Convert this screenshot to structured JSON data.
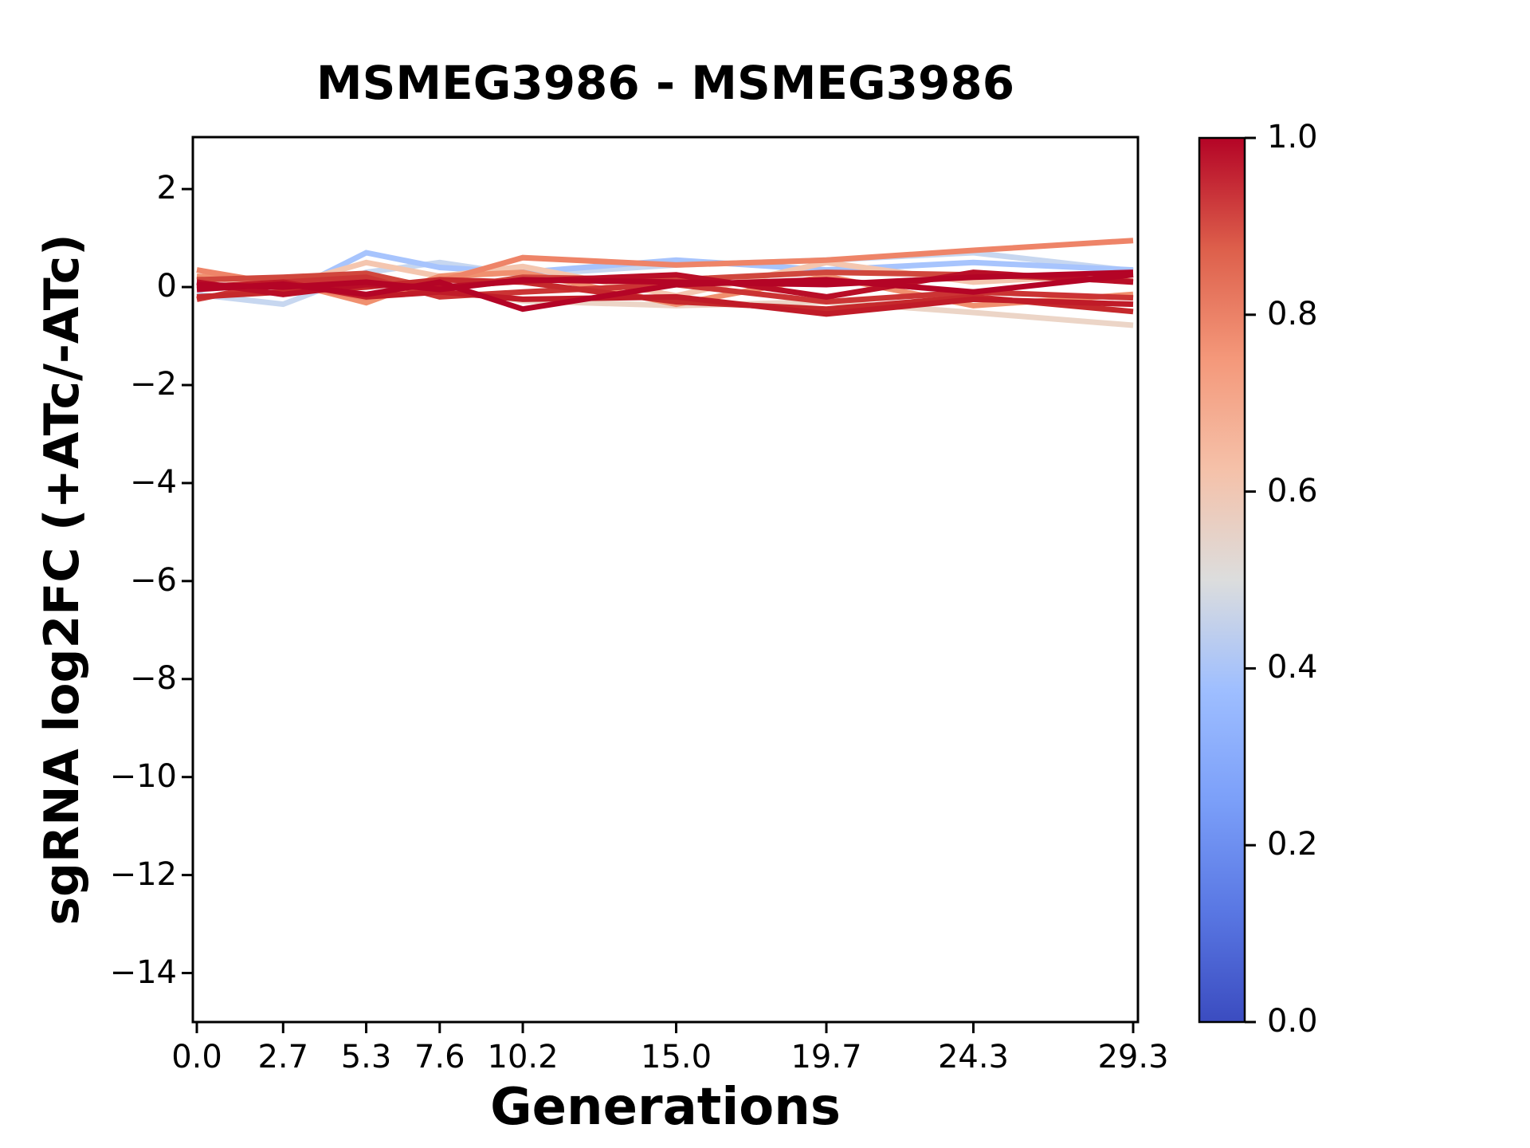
{
  "title": "MSMEG3986 - MSMEG3986",
  "chart_data": {
    "type": "line",
    "title": "MSMEG3986 - MSMEG3986",
    "xlabel": "Generations",
    "ylabel": "sgRNA log2FC (+ATc/-ATc)",
    "x": [
      0.0,
      2.7,
      5.3,
      7.6,
      10.2,
      15.0,
      19.7,
      24.3,
      29.3
    ],
    "xticklabels": [
      "0.0",
      "2.7",
      "5.3",
      "7.6",
      "10.2",
      "15.0",
      "19.7",
      "24.3",
      "29.3"
    ],
    "yticks": [
      2,
      0,
      -2,
      -4,
      -6,
      -8,
      -10,
      -12,
      -14
    ],
    "yticklabels": [
      "2",
      "0",
      "−2",
      "−4",
      "−6",
      "−8",
      "−10",
      "−12",
      "−14"
    ],
    "xlim": [
      -0.125,
      29.45
    ],
    "ylim": [
      -15.0,
      3.06
    ],
    "grid": false,
    "legend": "none",
    "line_width": 7,
    "series": [
      {
        "id": "sgRNA-01",
        "colormap_value": 0.47,
        "color": "#c7d7f0",
        "values": [
          -0.15,
          -0.35,
          0.3,
          0.5,
          0.25,
          0.45,
          0.55,
          0.7,
          0.33
        ]
      },
      {
        "id": "sgRNA-02",
        "colormap_value": 0.42,
        "color": "#a7c4fd",
        "values": [
          0.1,
          -0.15,
          0.7,
          0.4,
          0.3,
          0.55,
          0.35,
          0.5,
          0.35
        ]
      },
      {
        "id": "sgRNA-03",
        "colormap_value": 0.55,
        "color": "#ecd5c7",
        "values": [
          0.08,
          -0.05,
          0.15,
          -0.02,
          -0.28,
          -0.38,
          -0.3,
          -0.52,
          -0.78
        ]
      },
      {
        "id": "sgRNA-04",
        "colormap_value": 0.6,
        "color": "#f4c6af",
        "values": [
          0.22,
          0.02,
          0.5,
          0.22,
          0.42,
          -0.18,
          0.5,
          0.1,
          0.28
        ]
      },
      {
        "id": "sgRNA-05",
        "colormap_value": 0.78,
        "color": "#f0906f",
        "values": [
          0.22,
          0.12,
          -0.32,
          0.22,
          0.3,
          -0.35,
          0.22,
          -0.38,
          -0.15
        ]
      },
      {
        "id": "sgRNA-06",
        "colormap_value": 0.8,
        "color": "#ee8468",
        "values": [
          0.35,
          0.05,
          -0.22,
          0.12,
          0.6,
          0.45,
          0.55,
          0.75,
          0.95
        ]
      },
      {
        "id": "sgRNA-07",
        "colormap_value": 0.9,
        "color": "#d0473d",
        "values": [
          0.15,
          0.2,
          0.28,
          -0.05,
          0.2,
          0.15,
          0.3,
          0.25,
          0.12
        ]
      },
      {
        "id": "sgRNA-08",
        "colormap_value": 0.93,
        "color": "#cb3434",
        "values": [
          -0.25,
          0.1,
          0.2,
          -0.2,
          -0.1,
          0.05,
          -0.3,
          -0.1,
          -0.22
        ]
      },
      {
        "id": "sgRNA-09",
        "colormap_value": 0.95,
        "color": "#c5292c",
        "values": [
          -0.2,
          -0.1,
          0.0,
          0.15,
          0.1,
          -0.3,
          -0.45,
          -0.2,
          -0.5
        ]
      },
      {
        "id": "sgRNA-10",
        "colormap_value": 0.96,
        "color": "#c01b28",
        "values": [
          0.0,
          0.1,
          -0.2,
          -0.1,
          -0.25,
          -0.2,
          -0.55,
          -0.25,
          -0.35
        ]
      },
      {
        "id": "sgRNA-11",
        "colormap_value": 0.98,
        "color": "#b90e27",
        "values": [
          0.1,
          -0.15,
          0.05,
          0.0,
          0.12,
          0.25,
          -0.2,
          0.3,
          0.1
        ]
      },
      {
        "id": "sgRNA-12",
        "colormap_value": 1.0,
        "color": "#b40426",
        "values": [
          -0.05,
          0.06,
          -0.15,
          0.1,
          -0.45,
          0.05,
          0.15,
          -0.1,
          0.25
        ]
      },
      {
        "id": "sgRNA-13",
        "colormap_value": 1.0,
        "color": "#b40426",
        "values": [
          0.05,
          0.0,
          0.1,
          -0.05,
          0.15,
          0.1,
          0.05,
          0.2,
          0.3
        ]
      }
    ],
    "colorbar": {
      "orientation": "vertical",
      "colormap": "coolwarm",
      "min": 0.0,
      "max": 1.0,
      "ticks": [
        1.0,
        0.8,
        0.6,
        0.4,
        0.2,
        0.0
      ],
      "tick_labels": [
        "1.0",
        "0.8",
        "0.6",
        "0.4",
        "0.2",
        "0.0"
      ],
      "stops": [
        {
          "t": 0.0,
          "color": "#3b4cc0"
        },
        {
          "t": 0.125,
          "color": "#5977e3"
        },
        {
          "t": 0.25,
          "color": "#7b9ff9"
        },
        {
          "t": 0.375,
          "color": "#9ebeff"
        },
        {
          "t": 0.5,
          "color": "#dcdddd"
        },
        {
          "t": 0.625,
          "color": "#f5c1a9"
        },
        {
          "t": 0.75,
          "color": "#f4987a"
        },
        {
          "t": 0.875,
          "color": "#dd5f4b"
        },
        {
          "t": 1.0,
          "color": "#b40426"
        }
      ]
    },
    "axis_color": "#000000",
    "background_color": "#ffffff"
  }
}
